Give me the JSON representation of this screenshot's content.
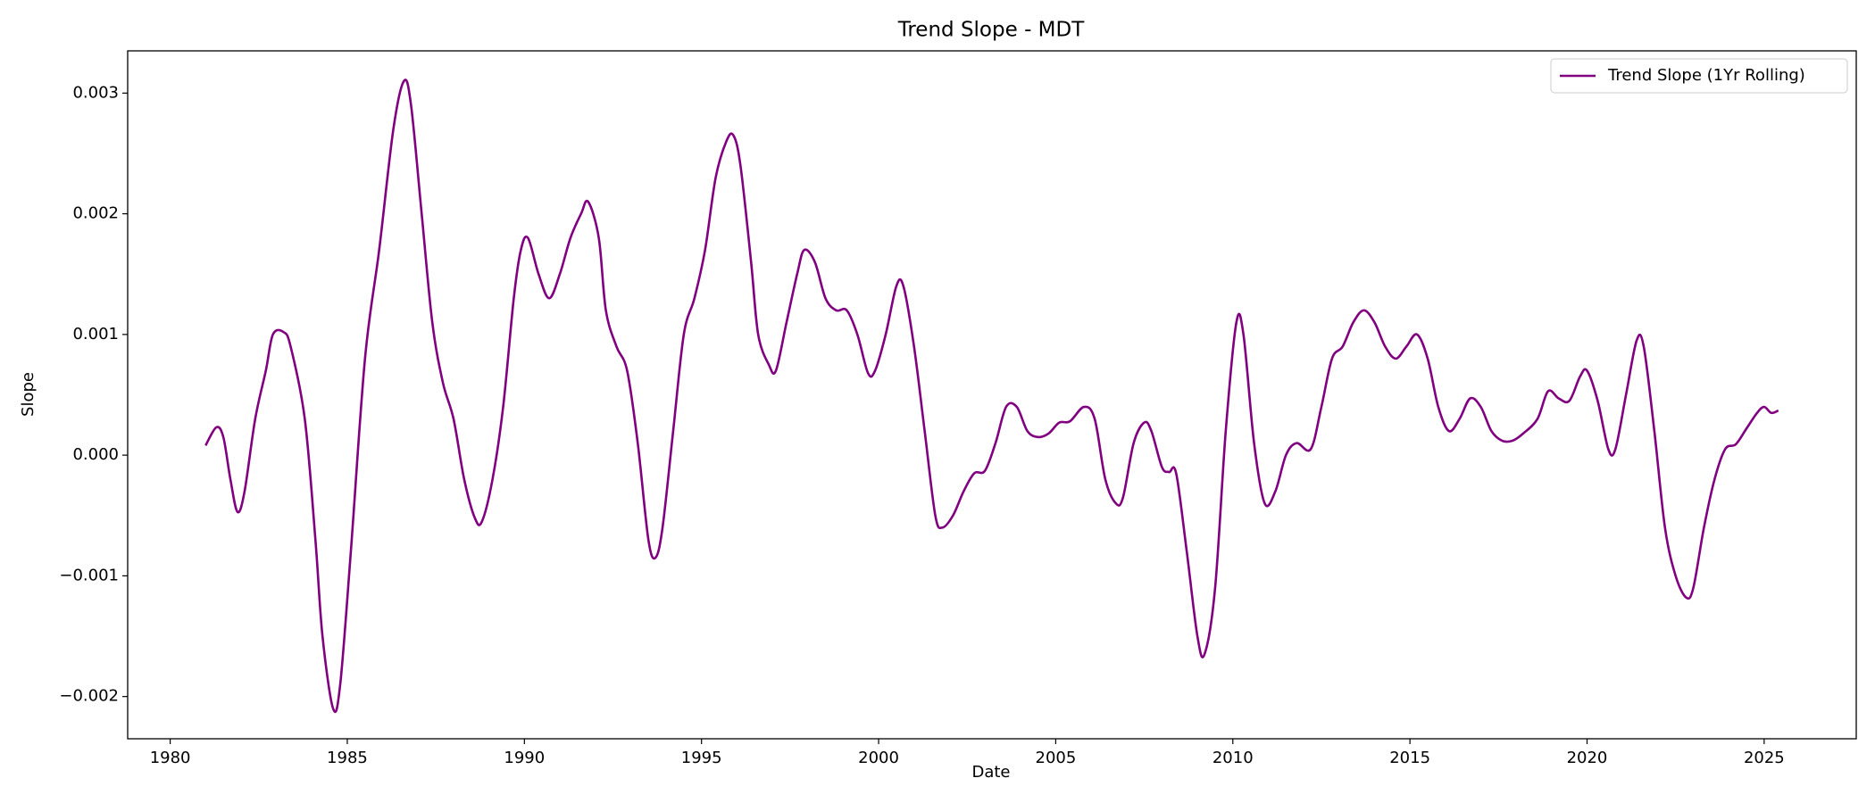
{
  "chart_data": {
    "type": "line",
    "title": "Trend Slope - MDT",
    "x_label": "Date",
    "y_label": "Slope",
    "legend_position": "upper right",
    "grid": false,
    "xlim": [
      1978.8,
      2027.6
    ],
    "xticks": [
      1980,
      1985,
      1990,
      1995,
      2000,
      2005,
      2010,
      2015,
      2020,
      2025
    ],
    "ylim": [
      -0.00235,
      0.00335
    ],
    "yticks": [
      {
        "value": -0.002,
        "label": "−0.002"
      },
      {
        "value": -0.001,
        "label": "−0.001"
      },
      {
        "value": 0,
        "label": "0.000"
      },
      0.001,
      0.002,
      0.003
    ],
    "x": [
      1981.0,
      1981.3,
      1981.5,
      1981.7,
      1981.9,
      1982.1,
      1982.4,
      1982.7,
      1982.9,
      1983.2,
      1983.4,
      1983.8,
      1984.1,
      1984.3,
      1984.6,
      1984.8,
      1985.1,
      1985.5,
      1985.9,
      1986.3,
      1986.6,
      1986.8,
      1987.1,
      1987.4,
      1987.7,
      1988.0,
      1988.3,
      1988.6,
      1988.8,
      1989.1,
      1989.4,
      1989.7,
      1989.9,
      1990.1,
      1990.4,
      1990.7,
      1991.0,
      1991.3,
      1991.6,
      1991.8,
      1992.1,
      1992.3,
      1992.6,
      1992.9,
      1993.2,
      1993.5,
      1993.7,
      1993.9,
      1994.2,
      1994.5,
      1994.8,
      1995.1,
      1995.4,
      1995.7,
      1995.9,
      1996.1,
      1996.4,
      1996.6,
      1996.9,
      1997.1,
      1997.4,
      1997.7,
      1997.9,
      1998.2,
      1998.5,
      1998.8,
      1999.1,
      1999.4,
      1999.7,
      1999.9,
      2000.2,
      2000.5,
      2000.7,
      2001.0,
      2001.3,
      2001.6,
      2001.8,
      2002.1,
      2002.4,
      2002.7,
      2003.0,
      2003.3,
      2003.6,
      2003.9,
      2004.2,
      2004.5,
      2004.8,
      2005.1,
      2005.4,
      2005.8,
      2006.1,
      2006.4,
      2006.7,
      2006.9,
      2007.2,
      2007.5,
      2007.7,
      2008.0,
      2008.2,
      2008.4,
      2008.7,
      2009.0,
      2009.2,
      2009.5,
      2009.8,
      2010.1,
      2010.3,
      2010.6,
      2010.9,
      2011.2,
      2011.5,
      2011.8,
      2012.2,
      2012.5,
      2012.8,
      2013.1,
      2013.4,
      2013.7,
      2014.0,
      2014.3,
      2014.6,
      2014.9,
      2015.2,
      2015.5,
      2015.8,
      2016.1,
      2016.4,
      2016.7,
      2017.0,
      2017.3,
      2017.6,
      2017.9,
      2018.2,
      2018.6,
      2018.9,
      2019.2,
      2019.5,
      2019.8,
      2020.0,
      2020.3,
      2020.6,
      2020.8,
      2021.1,
      2021.4,
      2021.6,
      2021.9,
      2022.2,
      2022.5,
      2022.8,
      2023.0,
      2023.3,
      2023.6,
      2023.9,
      2024.2,
      2024.5,
      2024.8,
      2025.0,
      2025.2,
      2025.4
    ],
    "series": [
      {
        "name": "Trend Slope (1Yr Rolling)",
        "color": "#800080",
        "values": [
          8e-05,
          0.00023,
          0.00015,
          -0.0002,
          -0.00047,
          -0.0003,
          0.0003,
          0.0007,
          0.001,
          0.00102,
          0.0009,
          0.0003,
          -0.0007,
          -0.0015,
          -0.0021,
          -0.0019,
          -0.0008,
          0.0008,
          0.0017,
          0.0027,
          0.0031,
          0.0029,
          0.002,
          0.0011,
          0.0006,
          0.0003,
          -0.0002,
          -0.00052,
          -0.00055,
          -0.0002,
          0.0004,
          0.0013,
          0.0017,
          0.0018,
          0.0015,
          0.0013,
          0.0015,
          0.0018,
          0.002,
          0.0021,
          0.0018,
          0.0012,
          0.0009,
          0.0007,
          0.0001,
          -0.0007,
          -0.00085,
          -0.0006,
          0.0002,
          0.001,
          0.0013,
          0.0017,
          0.0023,
          0.0026,
          0.00265,
          0.0024,
          0.0016,
          0.001,
          0.00075,
          0.0007,
          0.0011,
          0.0015,
          0.0017,
          0.0016,
          0.0013,
          0.0012,
          0.0012,
          0.001,
          0.00068,
          0.0007,
          0.001,
          0.0014,
          0.0014,
          0.0009,
          0.0002,
          -0.0005,
          -0.0006,
          -0.0005,
          -0.0003,
          -0.00015,
          -0.00013,
          0.0001,
          0.0004,
          0.0004,
          0.0002,
          0.00015,
          0.00018,
          0.00027,
          0.00028,
          0.0004,
          0.0003,
          -0.0002,
          -0.0004,
          -0.00035,
          0.0001,
          0.00027,
          0.0002,
          -0.0001,
          -0.00014,
          -0.00015,
          -0.0008,
          -0.0015,
          -0.00165,
          -0.0011,
          0.0002,
          0.0011,
          0.001,
          0.0001,
          -0.0004,
          -0.0003,
          0,
          0.0001,
          5e-05,
          0.0004,
          0.0008,
          0.0009,
          0.0011,
          0.0012,
          0.0011,
          0.0009,
          0.0008,
          0.0009,
          0.001,
          0.0008,
          0.0004,
          0.0002,
          0.0003,
          0.00047,
          0.0004,
          0.0002,
          0.00012,
          0.00012,
          0.00018,
          0.0003,
          0.00053,
          0.00047,
          0.00045,
          0.00065,
          0.0007,
          0.00045,
          5e-05,
          5e-05,
          0.0005,
          0.00095,
          0.0009,
          0.0002,
          -0.0006,
          -0.001,
          -0.00118,
          -0.0011,
          -0.0006,
          -0.0002,
          5e-05,
          9e-05,
          0.00022,
          0.00035,
          0.0004,
          0.00035,
          0.00037
        ]
      }
    ]
  }
}
